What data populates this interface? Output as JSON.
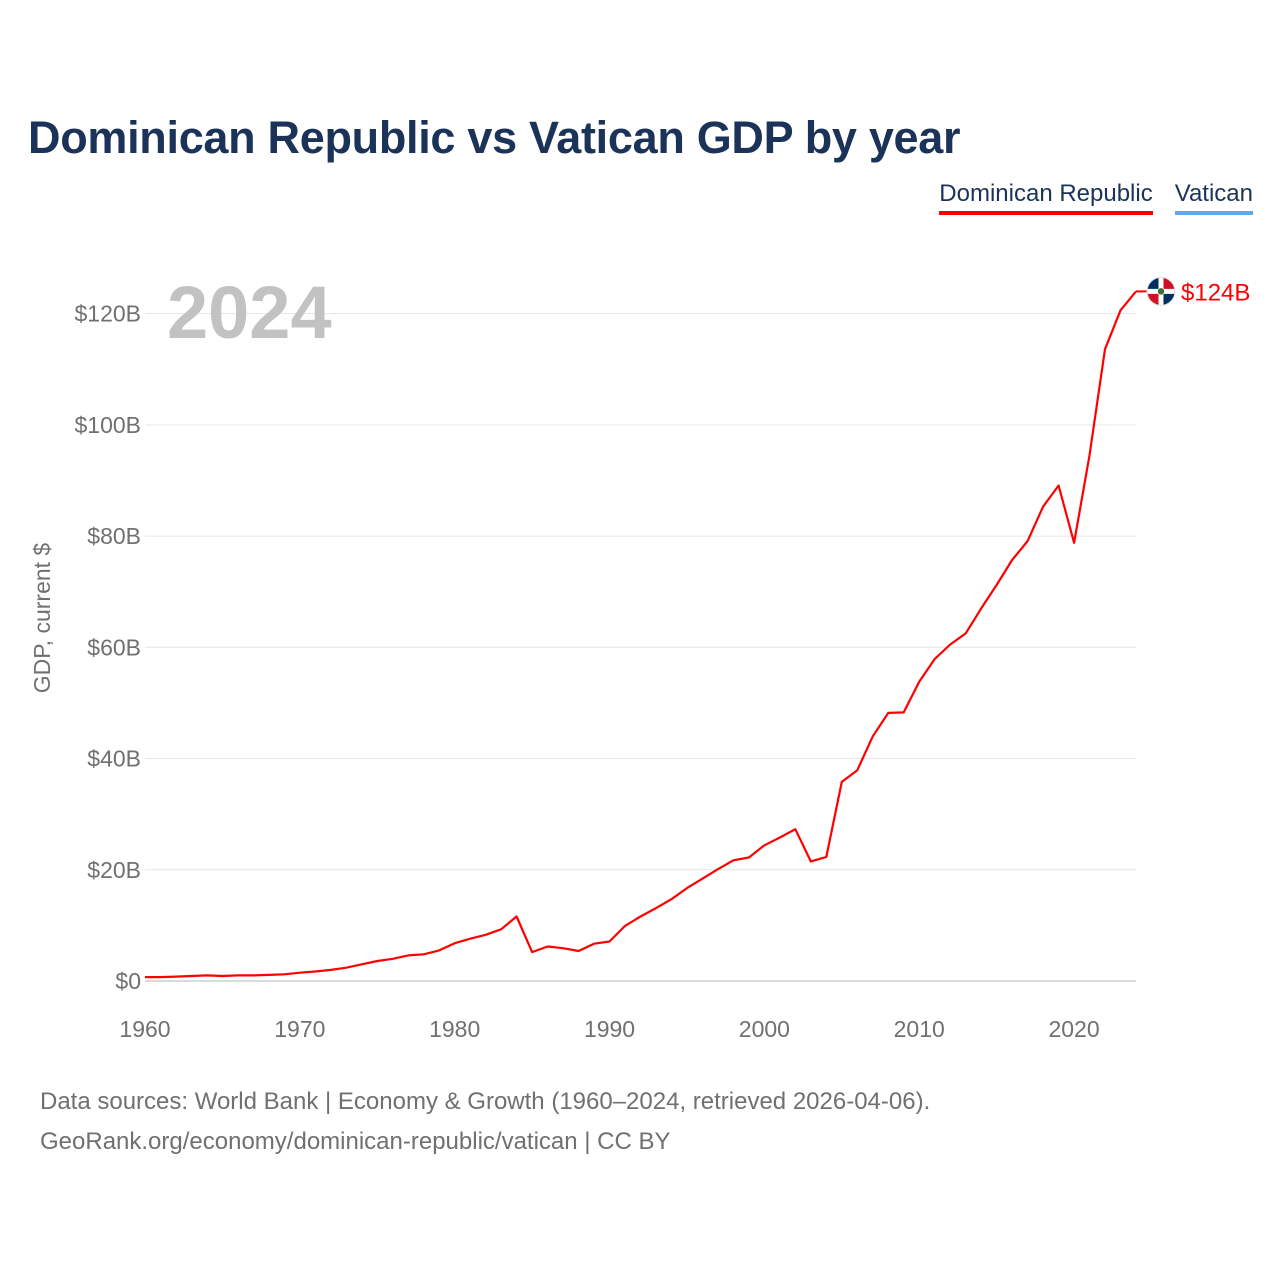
{
  "title": "Dominican Republic vs Vatican GDP by year",
  "legend": [
    {
      "label": "Dominican Republic",
      "color": "#ff0000"
    },
    {
      "label": "Vatican",
      "color": "#62a8e5"
    }
  ],
  "year_label": "2024",
  "end_label": "$124B",
  "footer": {
    "line1": "Data sources: World Bank | Economy & Growth (1960–2024, retrieved 2026-04-06).",
    "line2": "GeoRank.org/economy/dominican-republic/vatican | CC BY"
  },
  "chart_data": {
    "type": "line",
    "title": "Dominican Republic vs Vatican GDP by year",
    "xlabel": "",
    "ylabel": "GDP, current $",
    "xlim": [
      1960,
      2024
    ],
    "ylim": [
      0,
      130
    ],
    "x_ticks": [
      1960,
      1970,
      1980,
      1990,
      2000,
      2010,
      2020
    ],
    "x_tick_labels": [
      "1960",
      "1970",
      "1980",
      "1990",
      "2000",
      "2010",
      "2020"
    ],
    "y_ticks": [
      0,
      20,
      40,
      60,
      80,
      100,
      120
    ],
    "y_tick_labels": [
      "$0",
      "$20B",
      "$40B",
      "$60B",
      "$80B",
      "$100B",
      "$120B"
    ],
    "grid": true,
    "legend_position": "top-right",
    "units": "billions of current US$",
    "series": [
      {
        "name": "Dominican Republic",
        "color": "#ff0000",
        "x": [
          1960,
          1961,
          1962,
          1963,
          1964,
          1965,
          1966,
          1967,
          1968,
          1969,
          1970,
          1971,
          1972,
          1973,
          1974,
          1975,
          1976,
          1977,
          1978,
          1979,
          1980,
          1981,
          1982,
          1983,
          1984,
          1985,
          1986,
          1987,
          1988,
          1989,
          1990,
          1991,
          1992,
          1993,
          1994,
          1995,
          1996,
          1997,
          1998,
          1999,
          2000,
          2001,
          2002,
          2003,
          2004,
          2005,
          2006,
          2007,
          2008,
          2009,
          2010,
          2011,
          2012,
          2013,
          2014,
          2015,
          2016,
          2017,
          2018,
          2019,
          2020,
          2021,
          2022,
          2023,
          2024
        ],
        "values": [
          0.7,
          0.7,
          0.8,
          0.9,
          1.0,
          0.9,
          1.0,
          1.0,
          1.1,
          1.2,
          1.5,
          1.7,
          2.0,
          2.4,
          3.0,
          3.6,
          4.0,
          4.6,
          4.8,
          5.5,
          6.8,
          7.6,
          8.3,
          9.3,
          11.6,
          5.2,
          6.2,
          5.9,
          5.4,
          6.7,
          7.1,
          9.9,
          11.6,
          13.1,
          14.7,
          16.7,
          18.4,
          20.1,
          21.7,
          22.2,
          24.4,
          25.8,
          27.3,
          21.5,
          22.3,
          35.8,
          37.9,
          44.0,
          48.2,
          48.3,
          53.8,
          57.9,
          60.5,
          62.5,
          67.0,
          71.2,
          75.7,
          79.1,
          85.3,
          89.1,
          78.8,
          94.5,
          113.6,
          120.6,
          124.0
        ]
      },
      {
        "name": "Vatican",
        "color": "#62a8e5",
        "x": [],
        "values": []
      }
    ]
  }
}
